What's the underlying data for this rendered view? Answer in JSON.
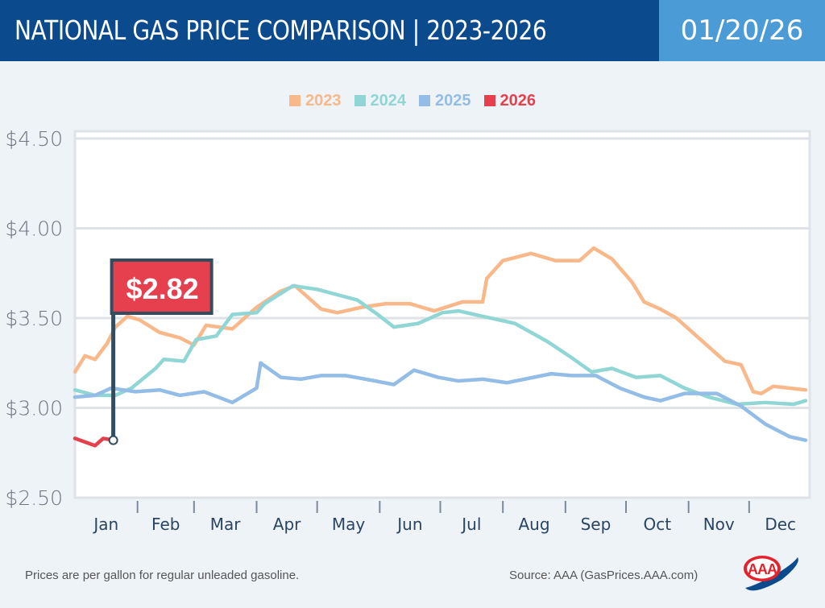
{
  "header": {
    "title": "NATIONAL GAS PRICE COMPARISON | 2023-2026",
    "date": "01/20/26"
  },
  "footer": {
    "note": "Prices are per gallon for regular unleaded gasoline.",
    "source": "Source: AAA (GasPrices.AAA.com)",
    "logo": "AAA"
  },
  "chart_data": {
    "type": "line",
    "legend_position": "top",
    "grid": true,
    "ylim": [
      2.5,
      4.5
    ],
    "y_ticks": [
      "$2.50",
      "$3.00",
      "$3.50",
      "$4.00",
      "$4.50"
    ],
    "y_tick_values": [
      2.5,
      3.0,
      3.5,
      4.0,
      4.5
    ],
    "x_ticks": [
      "Jan",
      "Feb",
      "Mar",
      "Apr",
      "May",
      "Jun",
      "Jul",
      "Aug",
      "Sep",
      "Oct",
      "Nov",
      "Dec"
    ],
    "annotation": {
      "label": "$2.82",
      "date": "01-20",
      "value": 2.82,
      "color": "#e63f4d"
    },
    "series": [
      {
        "name": "2023",
        "color": "#f9b88a",
        "x": [
          "01-01",
          "01-06",
          "01-11",
          "01-17",
          "01-21",
          "01-27",
          "02-02",
          "02-12",
          "02-22",
          "03-01",
          "03-07",
          "03-20",
          "04-01",
          "04-13",
          "04-20",
          "05-03",
          "05-11",
          "05-23",
          "06-04",
          "06-16",
          "06-28",
          "07-12",
          "07-22",
          "07-24",
          "08-01",
          "08-15",
          "08-27",
          "09-08",
          "09-15",
          "09-24",
          "10-04",
          "10-10",
          "10-18",
          "10-26",
          "11-07",
          "11-19",
          "11-27",
          "12-03",
          "12-07",
          "12-13",
          "12-29"
        ],
        "values": [
          3.2,
          3.29,
          3.27,
          3.36,
          3.45,
          3.51,
          3.49,
          3.42,
          3.39,
          3.35,
          3.46,
          3.44,
          3.56,
          3.65,
          3.68,
          3.55,
          3.53,
          3.56,
          3.58,
          3.58,
          3.54,
          3.59,
          3.59,
          3.72,
          3.82,
          3.86,
          3.82,
          3.82,
          3.89,
          3.83,
          3.7,
          3.59,
          3.55,
          3.5,
          3.38,
          3.26,
          3.24,
          3.09,
          3.08,
          3.12,
          3.1
        ]
      },
      {
        "name": "2024",
        "color": "#8fd6d4",
        "x": [
          "01-01",
          "01-11",
          "01-21",
          "01-29",
          "02-10",
          "02-14",
          "02-24",
          "03-02",
          "03-12",
          "03-20",
          "04-01",
          "04-05",
          "04-19",
          "05-01",
          "05-11",
          "05-21",
          "05-31",
          "06-08",
          "06-20",
          "07-02",
          "07-10",
          "07-22",
          "08-07",
          "08-23",
          "09-04",
          "09-14",
          "09-24",
          "10-06",
          "10-18",
          "10-30",
          "11-11",
          "11-25",
          "12-09",
          "12-23",
          "12-29"
        ],
        "values": [
          3.1,
          3.07,
          3.07,
          3.11,
          3.22,
          3.27,
          3.26,
          3.38,
          3.4,
          3.52,
          3.53,
          3.58,
          3.68,
          3.66,
          3.63,
          3.6,
          3.52,
          3.45,
          3.47,
          3.53,
          3.54,
          3.51,
          3.47,
          3.37,
          3.28,
          3.2,
          3.22,
          3.17,
          3.18,
          3.11,
          3.06,
          3.02,
          3.03,
          3.02,
          3.04
        ]
      },
      {
        "name": "2025",
        "color": "#93bde6",
        "x": [
          "01-01",
          "01-11",
          "01-19",
          "01-31",
          "02-12",
          "02-22",
          "03-06",
          "03-20",
          "04-01",
          "04-03",
          "04-13",
          "04-23",
          "05-03",
          "05-15",
          "05-25",
          "06-08",
          "06-18",
          "06-30",
          "07-10",
          "07-22",
          "08-03",
          "08-25",
          "09-04",
          "09-16",
          "09-28",
          "10-10",
          "10-18",
          "10-30",
          "11-15",
          "11-27",
          "12-09",
          "12-21",
          "12-29"
        ],
        "values": [
          3.06,
          3.07,
          3.11,
          3.09,
          3.1,
          3.07,
          3.09,
          3.03,
          3.11,
          3.25,
          3.17,
          3.16,
          3.18,
          3.18,
          3.16,
          3.13,
          3.21,
          3.17,
          3.15,
          3.16,
          3.14,
          3.19,
          3.18,
          3.18,
          3.11,
          3.06,
          3.04,
          3.08,
          3.08,
          3.01,
          2.91,
          2.84,
          2.82
        ]
      },
      {
        "name": "2026",
        "color": "#e63f4d",
        "x": [
          "01-01",
          "01-06",
          "01-11",
          "01-15",
          "01-20"
        ],
        "values": [
          2.83,
          2.81,
          2.79,
          2.83,
          2.82
        ]
      }
    ]
  }
}
